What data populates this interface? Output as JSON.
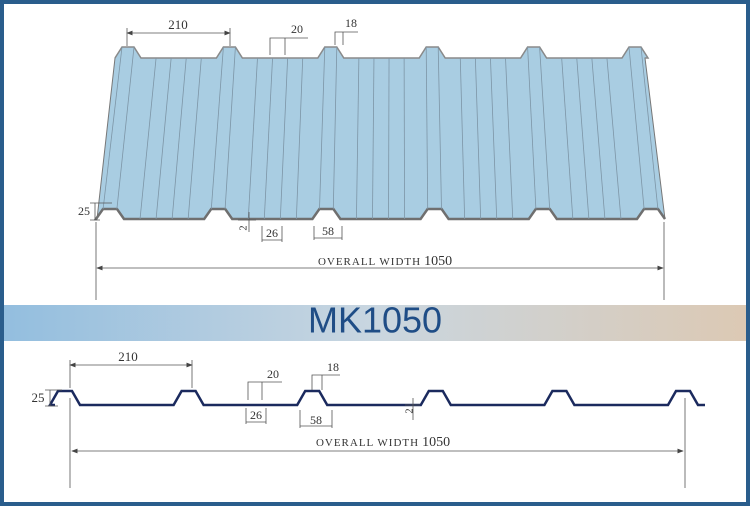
{
  "title": "MK1050",
  "top_view": {
    "rib_pitch": "210",
    "rib_top": "20",
    "rib_slope": "18",
    "rib_height": "25",
    "pan_step": "2",
    "pan_flat": "26",
    "rib_base": "58",
    "overall_label": "OVERALL WIDTH",
    "overall_value": "1050"
  },
  "profile_view": {
    "rib_pitch": "210",
    "rib_top": "20",
    "rib_slope": "18",
    "rib_height": "25",
    "pan_step": "2",
    "pan_flat": "26",
    "rib_base": "58",
    "overall_label": "OVERALL WIDTH",
    "overall_value": "1050"
  }
}
